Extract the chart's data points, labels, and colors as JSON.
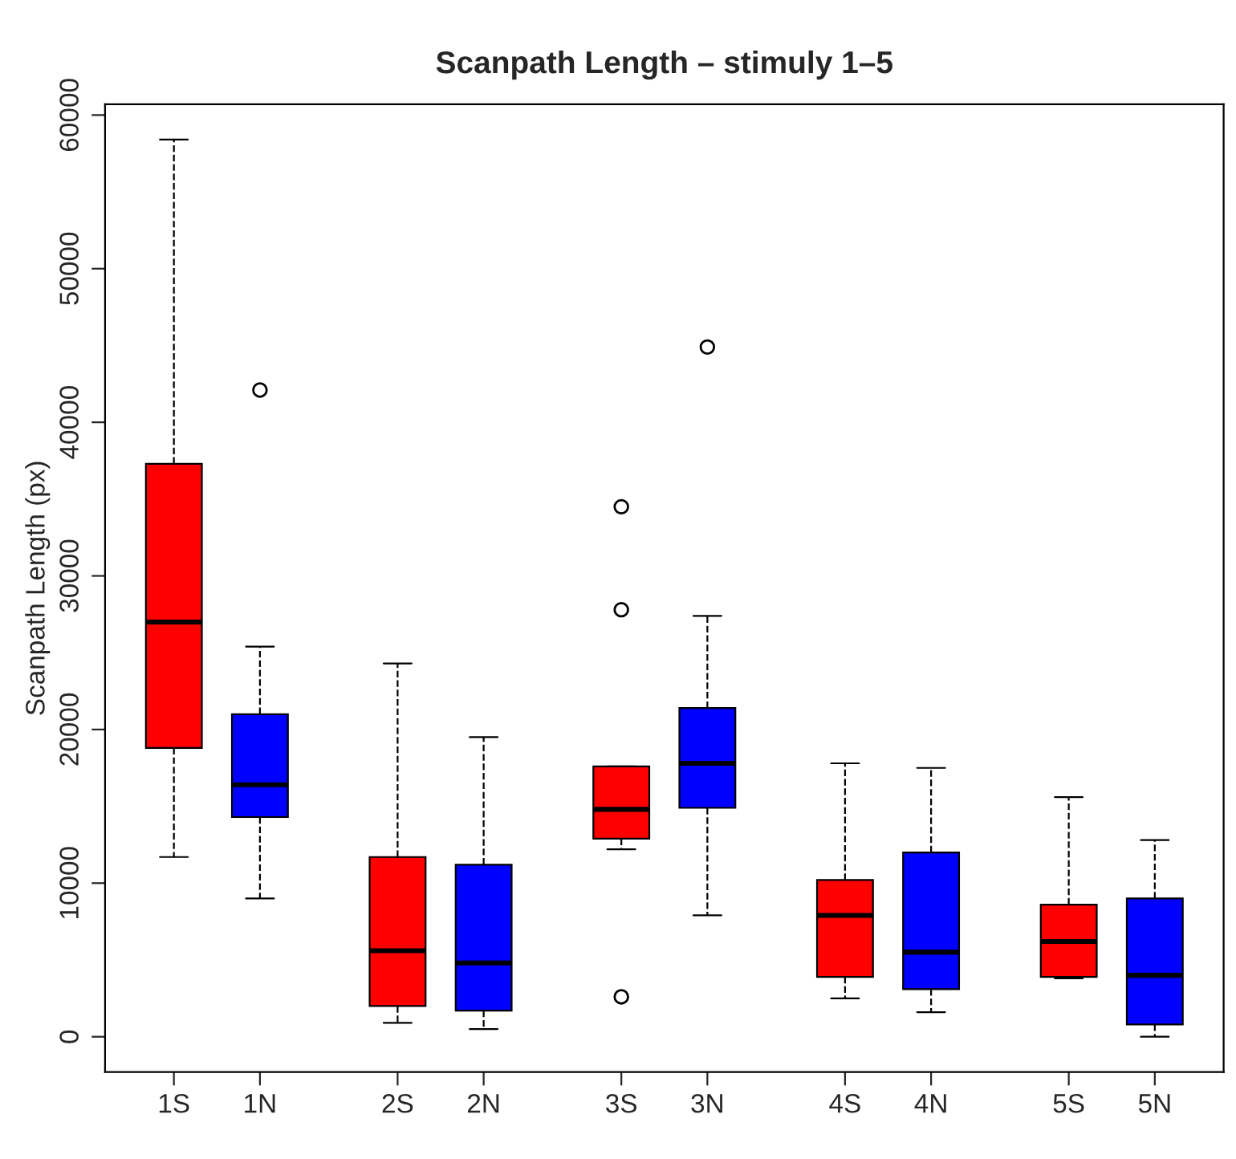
{
  "chart_data": {
    "type": "box",
    "title": "Scanpath Length – stimuly 1–5",
    "ylabel": "Scanpath Length (px)",
    "categories": [
      "1S",
      "1N",
      "2S",
      "2N",
      "3S",
      "3N",
      "4S",
      "4N",
      "5S",
      "5N"
    ],
    "colors": [
      "#ff0000",
      "#0000ff",
      "#ff0000",
      "#0000ff",
      "#ff0000",
      "#0000ff",
      "#ff0000",
      "#0000ff",
      "#ff0000",
      "#0000ff"
    ],
    "boxes": [
      {
        "low": 11700,
        "q1": 18800,
        "median": 27000,
        "q3": 37300,
        "high": 58400
      },
      {
        "low": 9000,
        "q1": 14300,
        "median": 16400,
        "q3": 21000,
        "high": 25400,
        "outliers": [
          42100
        ]
      },
      {
        "low": 900,
        "q1": 2000,
        "median": 5600,
        "q3": 11700,
        "high": 24300
      },
      {
        "low": 500,
        "q1": 1700,
        "median": 4800,
        "q3": 11200,
        "high": 19500
      },
      {
        "low": 12200,
        "q1": 12900,
        "median": 14800,
        "q3": 17600,
        "high": 17600,
        "outliers": [
          34500,
          27800,
          2600
        ]
      },
      {
        "low": 7900,
        "q1": 14900,
        "median": 17800,
        "q3": 21400,
        "high": 27400,
        "outliers": [
          44900
        ]
      },
      {
        "low": 2500,
        "q1": 3900,
        "median": 7900,
        "q3": 10200,
        "high": 17800
      },
      {
        "low": 1600,
        "q1": 3100,
        "median": 5500,
        "q3": 12000,
        "high": 17500
      },
      {
        "low": 3800,
        "q1": 3900,
        "median": 6200,
        "q3": 8600,
        "high": 15600
      },
      {
        "low": 0,
        "q1": 800,
        "median": 4000,
        "q3": 9000,
        "high": 12800
      }
    ],
    "ylim": [
      -2300,
      60700
    ],
    "yticks": [
      0,
      10000,
      20000,
      30000,
      40000,
      50000,
      60000
    ],
    "grid": false
  }
}
